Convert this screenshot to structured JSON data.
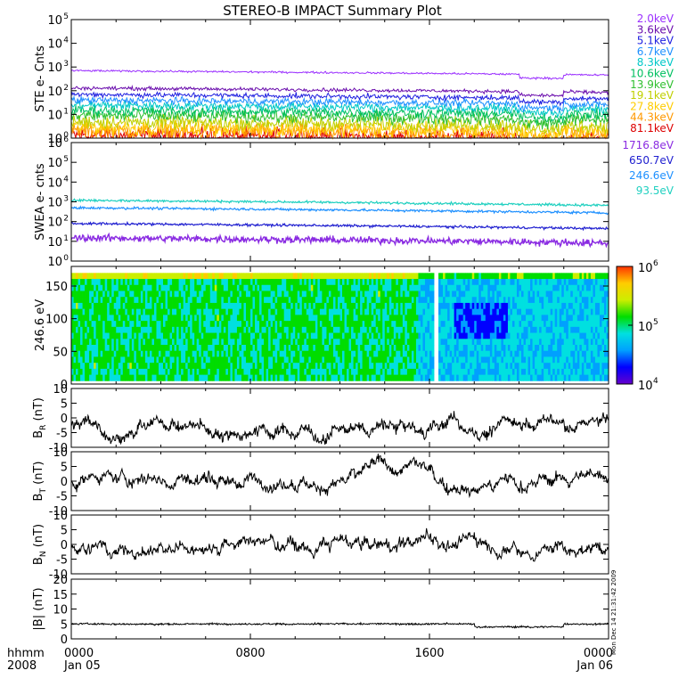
{
  "title": "STEREO-B IMPACT Summary Plot",
  "footer": {
    "row_label_1": "hhmm",
    "row_label_2": "2008",
    "ticks": [
      {
        "label": "0000",
        "sublabel": "Jan 05",
        "hour": 0
      },
      {
        "label": "0800",
        "sublabel": "",
        "hour": 8
      },
      {
        "label": "1600",
        "sublabel": "",
        "hour": 16
      },
      {
        "label": "0000",
        "sublabel": "Jan 06",
        "hour": 24
      }
    ]
  },
  "timestamp": "Mon Dec 14 21:31:42 2009",
  "colors": {
    "ste": [
      "#9b30ff",
      "#6a0dad",
      "#2020e0",
      "#1e90ff",
      "#00c8c8",
      "#00c060",
      "#30c030",
      "#c0d000",
      "#ffcc00",
      "#ff9900",
      "#dd0000"
    ],
    "swea": [
      "#8a2be2",
      "#2020d0",
      "#1e90ff",
      "#20d0c0"
    ],
    "colorbar": [
      "#6600cc",
      "#0000ff",
      "#00a0ff",
      "#00e0e0",
      "#00dd00",
      "#ccee00",
      "#ffcc00",
      "#ff3300"
    ]
  },
  "chart_data": [
    {
      "type": "line",
      "panel": "ste",
      "ylabel": "STE e- Cnts",
      "yscale": "log",
      "ylim": [
        1,
        100000
      ],
      "ytick_exponents": [
        0,
        1,
        2,
        3,
        4,
        5
      ],
      "xlim_hours": [
        0,
        24
      ],
      "legend_position": "right",
      "series": [
        {
          "name": "2.0keV",
          "level": 700
        },
        {
          "name": "3.6keV",
          "level": 130
        },
        {
          "name": "5.1keV",
          "level": 70
        },
        {
          "name": "6.7keV",
          "level": 40
        },
        {
          "name": "8.3keV",
          "level": 25
        },
        {
          "name": "10.6keV",
          "level": 15
        },
        {
          "name": "13.9keV",
          "level": 9
        },
        {
          "name": "19.1keV",
          "level": 5
        },
        {
          "name": "27.8keV",
          "level": 3
        },
        {
          "name": "44.3keV",
          "level": 2
        },
        {
          "name": "81.1keV",
          "level": 1.3
        }
      ]
    },
    {
      "type": "line",
      "panel": "swea",
      "ylabel": "SWEA e- cnts",
      "yscale": "log",
      "ylim": [
        1,
        1000000
      ],
      "ytick_exponents": [
        0,
        1,
        2,
        3,
        4,
        5,
        6
      ],
      "xlim_hours": [
        0,
        24
      ],
      "legend_position": "right",
      "series": [
        {
          "name": "1716.8eV",
          "level": 15
        },
        {
          "name": "650.7eV",
          "level": 80
        },
        {
          "name": "246.6eV",
          "level": 500
        },
        {
          "name": "93.5eV",
          "level": 1200
        }
      ]
    },
    {
      "type": "heatmap",
      "panel": "pad",
      "ylabel": "246.6 eV",
      "ylim": [
        0,
        180
      ],
      "yticks": [
        0,
        50,
        100,
        150
      ],
      "xlim_hours": [
        0,
        24
      ],
      "colorbar": {
        "scale": "log",
        "range": [
          10000,
          1000000
        ],
        "tick_exponents": [
          4,
          5,
          6
        ]
      }
    },
    {
      "type": "line",
      "panel": "br",
      "ylabel_main": "B",
      "ylabel_sub": "R",
      "ylabel_unit": "(nT)",
      "ylim": [
        -10,
        10
      ],
      "yticks": [
        -10,
        -5,
        0,
        5,
        10
      ],
      "xlim_hours": [
        0,
        24
      ],
      "typical_value": -3
    },
    {
      "type": "line",
      "panel": "bt",
      "ylabel_main": "B",
      "ylabel_sub": "T",
      "ylabel_unit": "(nT)",
      "ylim": [
        -10,
        10
      ],
      "yticks": [
        -10,
        -5,
        0,
        5,
        10
      ],
      "xlim_hours": [
        0,
        24
      ],
      "typical_value": 1
    },
    {
      "type": "line",
      "panel": "bn",
      "ylabel_main": "B",
      "ylabel_sub": "N",
      "ylabel_unit": "(nT)",
      "ylim": [
        -10,
        10
      ],
      "yticks": [
        -10,
        -5,
        0,
        5,
        10
      ],
      "xlim_hours": [
        0,
        24
      ],
      "typical_value": 0
    },
    {
      "type": "line",
      "panel": "bmag",
      "ylabel_main": "|B|",
      "ylabel_sub": "",
      "ylabel_unit": "(nT)",
      "ylim": [
        0,
        20
      ],
      "yticks": [
        0,
        5,
        10,
        15,
        20
      ],
      "xlim_hours": [
        0,
        24
      ],
      "typical_value": 5
    }
  ]
}
